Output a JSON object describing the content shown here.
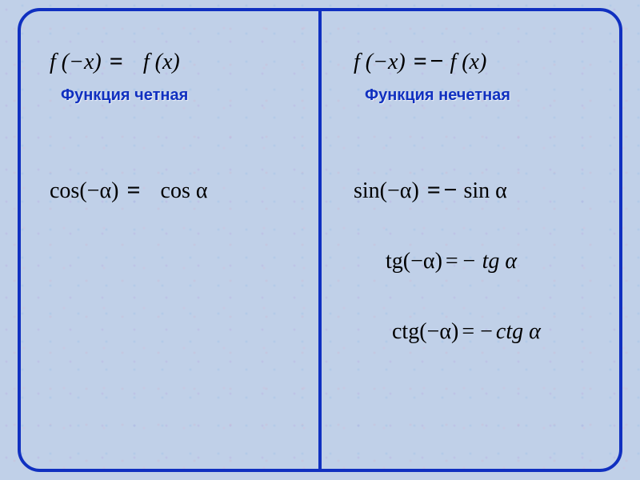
{
  "styling": {
    "frame_border_color": "#1030c0",
    "divider_color": "#1030c0",
    "label_color": "#1030c0",
    "text_color": "#000000",
    "background_color": "#c0d0e8",
    "eq_fontsize": 28,
    "label_fontsize": 20,
    "frame_border_width": 4,
    "frame_radius": 28
  },
  "left": {
    "def_lhs": "f (−x)",
    "def_eq": "=",
    "def_rhs": "f (x)",
    "label": "Функция четная",
    "cos_lhs": "cos(−α)",
    "cos_eq": "=",
    "cos_rhs": "cos α"
  },
  "right": {
    "def_lhs": "f (−x)",
    "def_eq": "= −",
    "def_rhs": "f (x)",
    "label": "Функция нечетная",
    "sin_lhs": "sin(−α)",
    "sin_eq": "= −",
    "sin_rhs": "sin α",
    "tg_lhs": "tg(−α)",
    "tg_eq": "=",
    "tg_rhs": "− tg α",
    "ctg_lhs": "ctg(−α)",
    "ctg_eq": "= −",
    "ctg_rhs": "ctg α"
  }
}
